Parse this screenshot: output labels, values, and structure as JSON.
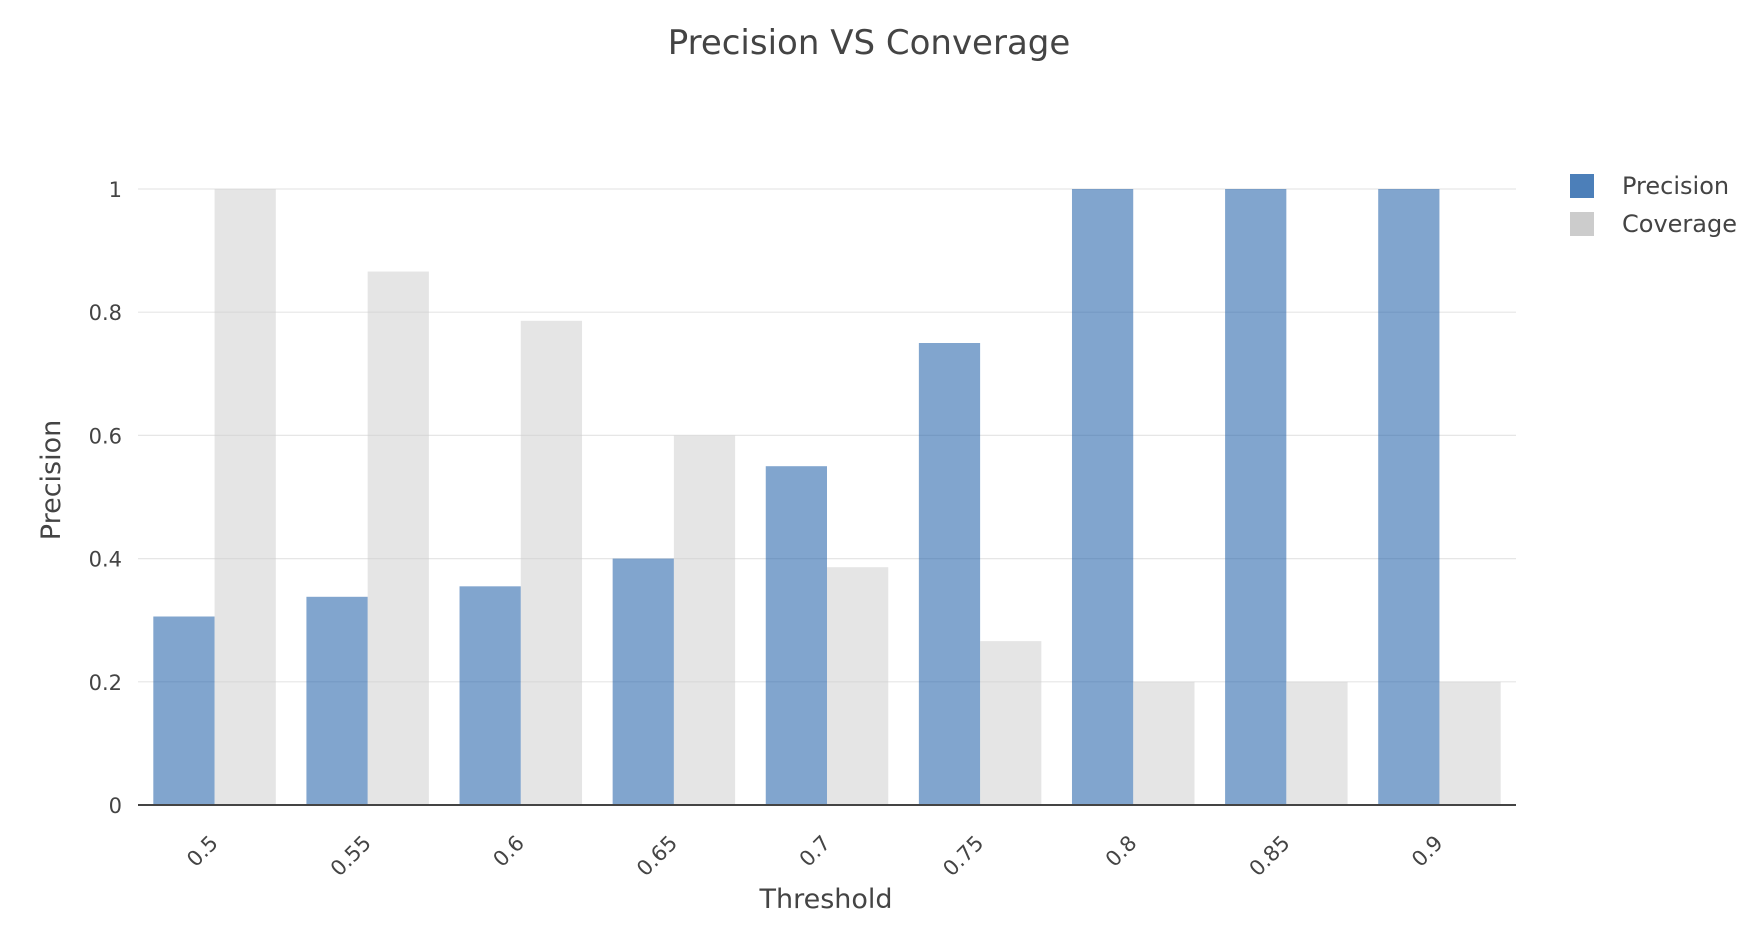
{
  "chart_data": {
    "type": "bar",
    "title": "Precision VS Converage",
    "xlabel": "Threshold",
    "ylabel": "Precision",
    "categories": [
      "0.5",
      "0.55",
      "0.6",
      "0.65",
      "0.7",
      "0.75",
      "0.8",
      "0.85",
      "0.9"
    ],
    "series": [
      {
        "name": "Precision",
        "color": "#1f5fa8",
        "values": [
          0.306,
          0.338,
          0.355,
          0.4,
          0.55,
          0.75,
          1,
          1,
          1
        ]
      },
      {
        "name": "Coverage",
        "color": "#cccccc",
        "values": [
          1,
          0.866,
          0.786,
          0.6,
          0.386,
          0.266,
          0.2,
          0.2,
          0.2
        ]
      }
    ],
    "y_ticks": [
      0,
      0.2,
      0.4,
      0.6,
      0.8,
      1
    ],
    "y_tick_labels": [
      "0",
      "0.2",
      "0.4",
      "0.6",
      "0.8",
      "1"
    ],
    "ylim": [
      0,
      1
    ],
    "grid": true,
    "legend_position": "top-right",
    "x_tick_rotation": "angled"
  }
}
